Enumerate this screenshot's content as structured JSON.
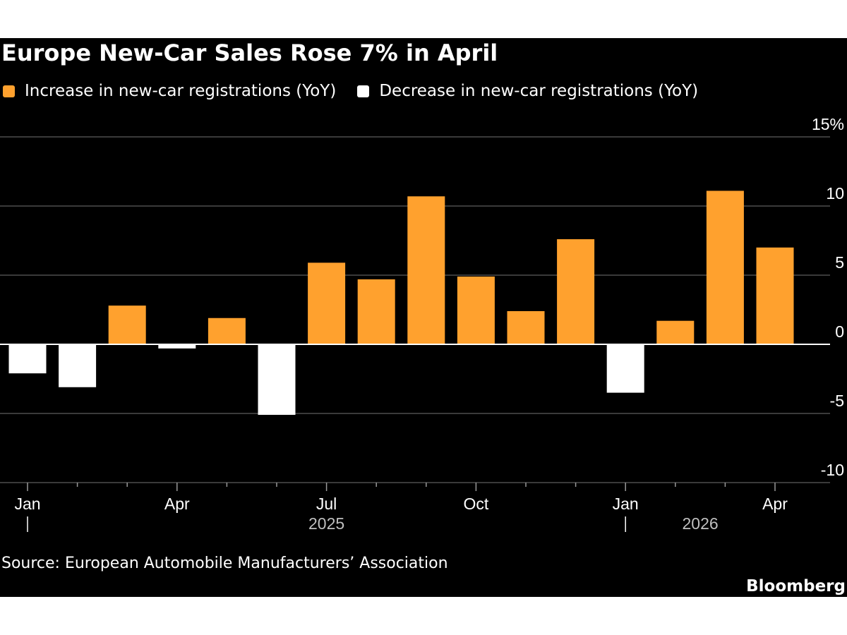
{
  "title": "Europe New-Car Sales Rose 7% in April",
  "legend": {
    "increase_label": "Increase in new-car registrations (YoY)",
    "decrease_label": "Decrease in new-car registrations (YoY)"
  },
  "colors": {
    "increase": "#ffa12e",
    "decrease": "#ffffff",
    "background": "#000000",
    "gridline": "#4d4d4d"
  },
  "source": "Source: European Automobile Manufacturers’ Association",
  "brand": "Bloomberg",
  "chart_data": {
    "type": "bar",
    "categories": [
      "Jan 2025",
      "Feb 2025",
      "Mar 2025",
      "Apr 2025",
      "May 2025",
      "Jun 2025",
      "Jul 2025",
      "Aug 2025",
      "Sep 2025",
      "Oct 2025",
      "Nov 2025",
      "Dec 2025",
      "Jan 2026",
      "Feb 2026",
      "Mar 2026",
      "Apr 2026"
    ],
    "values": [
      -2.1,
      -3.1,
      2.8,
      -0.3,
      1.9,
      -5.1,
      5.9,
      4.7,
      10.7,
      4.9,
      2.4,
      7.6,
      -3.5,
      1.7,
      11.1,
      7.0
    ],
    "ylim": [
      -10,
      15
    ],
    "yticks": [
      15,
      10,
      5,
      0,
      -5,
      -10
    ],
    "ytick_labels": [
      "15%",
      "10",
      "5",
      "0",
      "-5",
      "-10"
    ],
    "xtick_labels": [
      {
        "index": 0,
        "label": "Jan"
      },
      {
        "index": 3,
        "label": "Apr"
      },
      {
        "index": 6,
        "label": "Jul"
      },
      {
        "index": 9,
        "label": "Oct"
      },
      {
        "index": 12,
        "label": "Jan"
      },
      {
        "index": 15,
        "label": "Apr"
      }
    ],
    "year_labels": [
      {
        "year": "2025",
        "center_index": 6,
        "separator_index": 0
      },
      {
        "year": "2026",
        "center_index": 13.5,
        "separator_index": 12
      }
    ],
    "grid": true,
    "legend_position": "top-left"
  }
}
